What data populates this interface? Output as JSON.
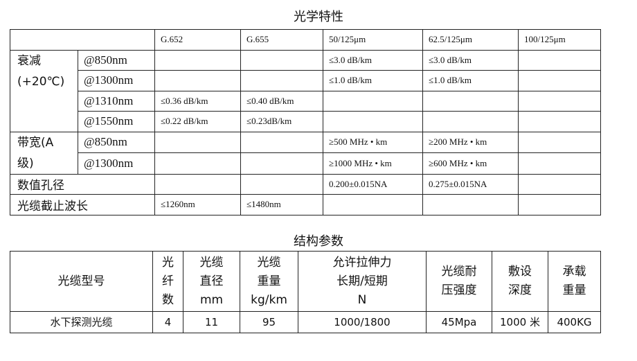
{
  "optical": {
    "title": "光学特性",
    "columns": [
      "G.652",
      "G.655",
      "50/125μm",
      "62.5/125μm",
      "100/125μm"
    ],
    "groups": {
      "attenuation": "衰减\n(+20℃)",
      "bandwidth": "带宽(A\n级)"
    },
    "rows": [
      {
        "label": "@850nm",
        "cells": [
          "",
          "",
          "≤3.0  dB/km",
          "≤3.0  dB/km",
          ""
        ]
      },
      {
        "label": "@1300nm",
        "cells": [
          "",
          "",
          "≤1.0  dB/km",
          "≤1.0  dB/km",
          ""
        ]
      },
      {
        "label": "@1310nm",
        "cells": [
          "≤0.36  dB/km",
          "≤0.40  dB/km",
          "",
          "",
          ""
        ]
      },
      {
        "label": "@1550nm",
        "cells": [
          "≤0.22  dB/km",
          "≤0.23dB/km",
          "",
          "",
          ""
        ]
      },
      {
        "label": "@850nm",
        "cells": [
          "",
          "",
          "≥500  MHz • km",
          "≥200  MHz • km",
          ""
        ]
      },
      {
        "label": "@1300nm",
        "cells": [
          "",
          "",
          "≥1000  MHz • km",
          "≥600  MHz • km",
          ""
        ]
      },
      {
        "label": "数值孔径",
        "cells": [
          "",
          "",
          "0.200±0.015NA",
          "0.275±0.015NA",
          ""
        ]
      },
      {
        "label": "光缆截止波长",
        "cells": [
          "≤1260nm",
          "≤1480nm",
          "",
          "",
          ""
        ]
      }
    ]
  },
  "structure": {
    "title": "结构参数",
    "headers": [
      "光缆型号",
      "光\n纤\n数",
      "光缆\n直径\nmm",
      "光缆\n重量\nkg/km",
      "允许拉伸力\n长期/短期\nN",
      "光缆耐\n压强度",
      "敷设\n深度",
      "承载\n重量"
    ],
    "rows": [
      [
        "水下探测光缆",
        "4",
        "11",
        "95",
        "1000/1800",
        "45Mpa",
        "1000 米",
        "400KG"
      ]
    ]
  }
}
